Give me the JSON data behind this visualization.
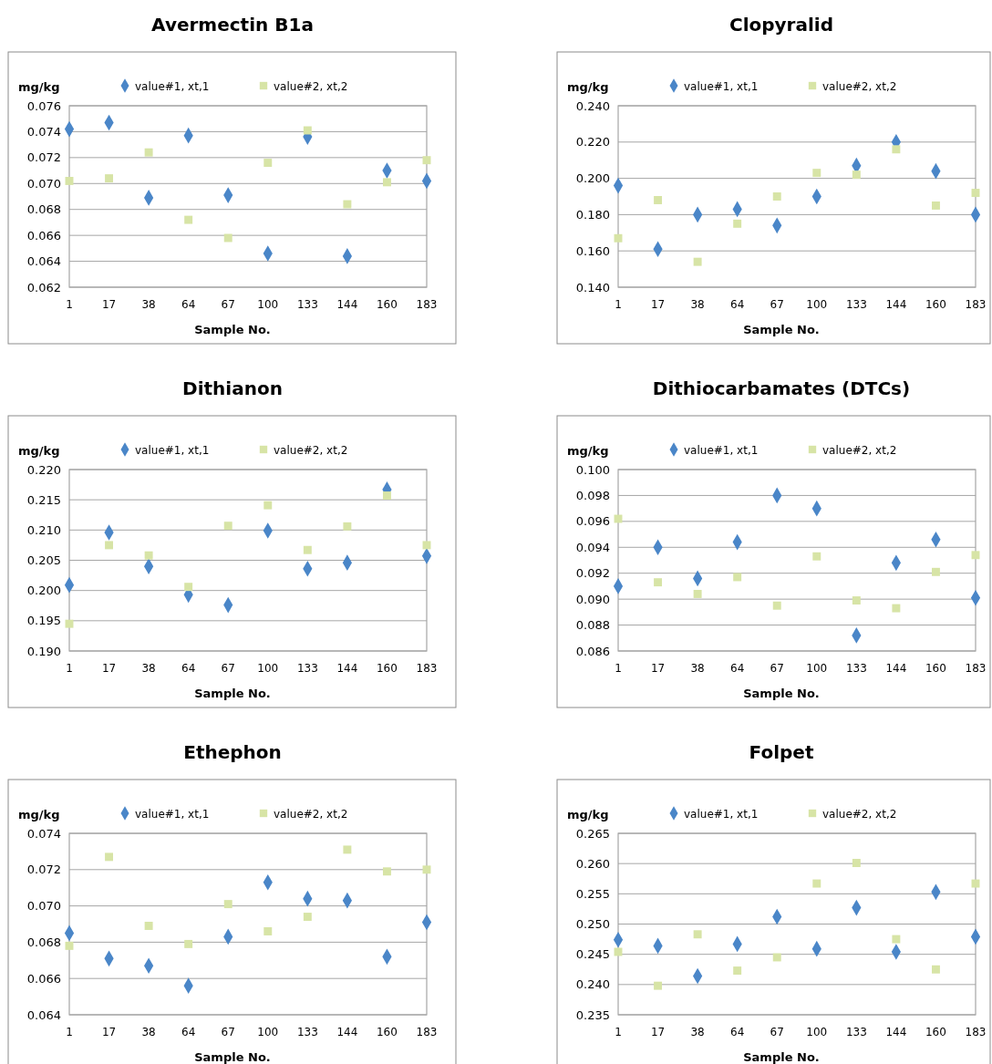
{
  "chart_data": [
    {
      "type": "scatter",
      "title": "Avermectin B1a",
      "ylabel": "mg/kg",
      "xlabel": "Sample No.",
      "categories": [
        "1",
        "17",
        "38",
        "64",
        "67",
        "100",
        "133",
        "144",
        "160",
        "183"
      ],
      "ylim": [
        0.062,
        0.076
      ],
      "yticks": [
        {
          "value": 0.062,
          "label": "0.062"
        },
        {
          "value": 0.064,
          "label": "0.064"
        },
        {
          "value": 0.066,
          "label": "0.066"
        },
        {
          "value": 0.068,
          "label": "0.068"
        },
        {
          "value": 0.07,
          "label": "0.070"
        },
        {
          "value": 0.072,
          "label": "0.072"
        },
        {
          "value": 0.074,
          "label": "0.074"
        },
        {
          "value": 0.076,
          "label": "0.076"
        }
      ],
      "grid": "y",
      "legend": "top",
      "series": [
        {
          "name": "value#1, xt,1",
          "color": "#4a86c8",
          "marker": "diamond",
          "values": [
            0.0742,
            0.0747,
            0.0689,
            0.0737,
            0.0691,
            0.0646,
            0.0736,
            0.0644,
            0.071,
            0.0702
          ]
        },
        {
          "name": "value#2, xt,2",
          "color": "#d7e4a6",
          "marker": "square",
          "values": [
            0.0702,
            0.0704,
            0.0724,
            0.0672,
            0.0658,
            0.0716,
            0.0741,
            0.0684,
            0.0701,
            0.0718
          ]
        }
      ]
    },
    {
      "type": "scatter",
      "title": "Clopyralid",
      "ylabel": "mg/kg",
      "xlabel": "Sample No.",
      "categories": [
        "1",
        "17",
        "38",
        "64",
        "67",
        "100",
        "133",
        "144",
        "160",
        "183"
      ],
      "ylim": [
        0.14,
        0.24
      ],
      "yticks": [
        {
          "value": 0.14,
          "label": "0.140"
        },
        {
          "value": 0.16,
          "label": "0.160"
        },
        {
          "value": 0.18,
          "label": "0.180"
        },
        {
          "value": 0.2,
          "label": "0.200"
        },
        {
          "value": 0.22,
          "label": "0.220"
        },
        {
          "value": 0.24,
          "label": "0.240"
        }
      ],
      "grid": "y",
      "legend": "top",
      "series": [
        {
          "name": "value#1, xt,1",
          "color": "#4a86c8",
          "marker": "diamond",
          "values": [
            0.196,
            0.161,
            0.18,
            0.183,
            0.174,
            0.19,
            0.207,
            0.22,
            0.204,
            0.18
          ]
        },
        {
          "name": "value#2, xt,2",
          "color": "#d7e4a6",
          "marker": "square",
          "values": [
            0.167,
            0.188,
            0.154,
            0.175,
            0.19,
            0.203,
            0.202,
            0.216,
            0.185,
            0.192
          ]
        }
      ]
    },
    {
      "type": "scatter",
      "title": "Dithianon",
      "ylabel": "mg/kg",
      "xlabel": "Sample No.",
      "categories": [
        "1",
        "17",
        "38",
        "64",
        "67",
        "100",
        "133",
        "144",
        "160",
        "183"
      ],
      "ylim": [
        0.19,
        0.22
      ],
      "yticks": [
        {
          "value": 0.19,
          "label": "0.190"
        },
        {
          "value": 0.195,
          "label": "0.195"
        },
        {
          "value": 0.2,
          "label": "0.200"
        },
        {
          "value": 0.205,
          "label": "0.205"
        },
        {
          "value": 0.21,
          "label": "0.210"
        },
        {
          "value": 0.215,
          "label": "0.215"
        },
        {
          "value": 0.22,
          "label": "0.220"
        }
      ],
      "grid": "y",
      "legend": "top",
      "series": [
        {
          "name": "value#1, xt,1",
          "color": "#4a86c8",
          "marker": "diamond",
          "values": [
            0.2009,
            0.2096,
            0.204,
            0.1993,
            0.1976,
            0.2099,
            0.2036,
            0.2046,
            0.2167,
            0.2057
          ]
        },
        {
          "name": "value#2, xt,2",
          "color": "#d7e4a6",
          "marker": "square",
          "values": [
            0.1945,
            0.2075,
            0.2058,
            0.2006,
            0.2107,
            0.2141,
            0.2067,
            0.2106,
            0.2157,
            0.2075
          ]
        }
      ]
    },
    {
      "type": "scatter",
      "title": "Dithiocarbamates (DTCs)",
      "ylabel": "mg/kg",
      "xlabel": "Sample No.",
      "categories": [
        "1",
        "17",
        "38",
        "64",
        "67",
        "100",
        "133",
        "144",
        "160",
        "183"
      ],
      "ylim": [
        0.086,
        0.1
      ],
      "yticks": [
        {
          "value": 0.086,
          "label": "0.086"
        },
        {
          "value": 0.088,
          "label": "0.088"
        },
        {
          "value": 0.09,
          "label": "0.090"
        },
        {
          "value": 0.092,
          "label": "0.092"
        },
        {
          "value": 0.094,
          "label": "0.094"
        },
        {
          "value": 0.096,
          "label": "0.096"
        },
        {
          "value": 0.098,
          "label": "0.098"
        },
        {
          "value": 0.1,
          "label": "0.100"
        }
      ],
      "grid": "y",
      "legend": "top",
      "series": [
        {
          "name": "value#1, xt,1",
          "color": "#4a86c8",
          "marker": "diamond",
          "values": [
            0.091,
            0.094,
            0.0916,
            0.0944,
            0.098,
            0.097,
            0.0872,
            0.0928,
            0.0946,
            0.0901
          ]
        },
        {
          "name": "value#2, xt,2",
          "color": "#d7e4a6",
          "marker": "square",
          "values": [
            0.0962,
            0.0913,
            0.0904,
            0.0917,
            0.0895,
            0.0933,
            0.0899,
            0.0893,
            0.0921,
            0.0934
          ]
        }
      ]
    },
    {
      "type": "scatter",
      "title": "Ethephon",
      "ylabel": "mg/kg",
      "xlabel": "Sample No.",
      "categories": [
        "1",
        "17",
        "38",
        "64",
        "67",
        "100",
        "133",
        "144",
        "160",
        "183"
      ],
      "ylim": [
        0.064,
        0.074
      ],
      "yticks": [
        {
          "value": 0.064,
          "label": "0.064"
        },
        {
          "value": 0.066,
          "label": "0.066"
        },
        {
          "value": 0.068,
          "label": "0.068"
        },
        {
          "value": 0.07,
          "label": "0.070"
        },
        {
          "value": 0.072,
          "label": "0.072"
        },
        {
          "value": 0.074,
          "label": "0.074"
        }
      ],
      "grid": "y",
      "legend": "top",
      "series": [
        {
          "name": "value#1, xt,1",
          "color": "#4a86c8",
          "marker": "diamond",
          "values": [
            0.0685,
            0.0671,
            0.0667,
            0.0656,
            0.0683,
            0.0713,
            0.0704,
            0.0703,
            0.0672,
            0.0691
          ]
        },
        {
          "name": "value#2, xt,2",
          "color": "#d7e4a6",
          "marker": "square",
          "values": [
            0.0678,
            0.0727,
            0.0689,
            0.0679,
            0.0701,
            0.0686,
            0.0694,
            0.0731,
            0.0719,
            0.072
          ]
        }
      ]
    },
    {
      "type": "scatter",
      "title": "Folpet",
      "ylabel": "mg/kg",
      "xlabel": "Sample No.",
      "categories": [
        "1",
        "17",
        "38",
        "64",
        "67",
        "100",
        "133",
        "144",
        "160",
        "183"
      ],
      "ylim": [
        0.235,
        0.265
      ],
      "yticks": [
        {
          "value": 0.235,
          "label": "0.235"
        },
        {
          "value": 0.24,
          "label": "0.240"
        },
        {
          "value": 0.245,
          "label": "0.245"
        },
        {
          "value": 0.25,
          "label": "0.250"
        },
        {
          "value": 0.255,
          "label": "0.255"
        },
        {
          "value": 0.26,
          "label": "0.260"
        },
        {
          "value": 0.265,
          "label": "0.265"
        }
      ],
      "grid": "y",
      "legend": "top",
      "series": [
        {
          "name": "value#1, xt,1",
          "color": "#4a86c8",
          "marker": "diamond",
          "values": [
            0.2474,
            0.2464,
            0.2414,
            0.2467,
            0.2512,
            0.2459,
            0.2527,
            0.2454,
            0.2553,
            0.2479
          ]
        },
        {
          "name": "value#2, xt,2",
          "color": "#d7e4a6",
          "marker": "square",
          "values": [
            0.2454,
            0.2398,
            0.2483,
            0.2423,
            0.2445,
            0.2567,
            0.2601,
            0.2475,
            0.2425,
            0.2567
          ]
        }
      ]
    }
  ]
}
